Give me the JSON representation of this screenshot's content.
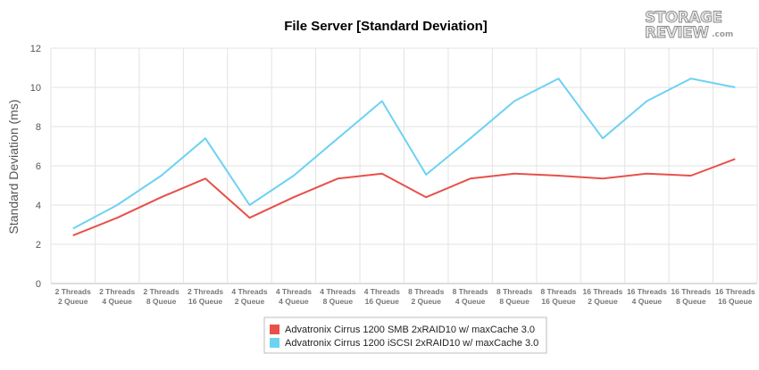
{
  "chart_data": {
    "type": "line",
    "title": "File Server [Standard Deviation]",
    "xlabel": "",
    "ylabel": "Standard Deviation (ms)",
    "ylim": [
      0,
      12
    ],
    "yticks": [
      0,
      2,
      4,
      6,
      8,
      10,
      12
    ],
    "grid": true,
    "legend_position": "bottom-center",
    "categories": [
      [
        "2 Threads",
        "2 Queue"
      ],
      [
        "2 Threads",
        "4 Queue"
      ],
      [
        "2 Threads",
        "8 Queue"
      ],
      [
        "2 Threads",
        "16 Queue"
      ],
      [
        "4 Threads",
        "2 Queue"
      ],
      [
        "4 Threads",
        "4 Queue"
      ],
      [
        "4 Threads",
        "8 Queue"
      ],
      [
        "4 Threads",
        "16 Queue"
      ],
      [
        "8 Threads",
        "2 Queue"
      ],
      [
        "8 Threads",
        "4 Queue"
      ],
      [
        "8 Threads",
        "8 Queue"
      ],
      [
        "8 Threads",
        "16 Queue"
      ],
      [
        "16 Threads",
        "2 Queue"
      ],
      [
        "16 Threads",
        "4 Queue"
      ],
      [
        "16 Threads",
        "8 Queue"
      ],
      [
        "16 Threads",
        "16 Queue"
      ]
    ],
    "series": [
      {
        "name": "Advatronix Cirrus 1200 SMB 2xRAID10 w/ maxCache 3.0",
        "color": "#e8504a",
        "values": [
          2.45,
          3.35,
          4.4,
          5.35,
          3.35,
          4.4,
          5.35,
          5.6,
          4.4,
          5.35,
          5.6,
          5.5,
          5.35,
          5.6,
          5.5,
          6.35
        ]
      },
      {
        "name": "Advatronix Cirrus 1200 iSCSI 2xRAID10 w/ maxCache 3.0",
        "color": "#6dd2f2",
        "values": [
          2.8,
          4.0,
          5.5,
          7.4,
          4.0,
          5.5,
          7.4,
          9.3,
          5.55,
          7.4,
          9.3,
          10.45,
          7.4,
          9.3,
          10.45,
          10.0
        ]
      }
    ]
  },
  "logo": {
    "line1": "STORAGE",
    "line2": "REVIEW",
    "suffix": ".com"
  }
}
